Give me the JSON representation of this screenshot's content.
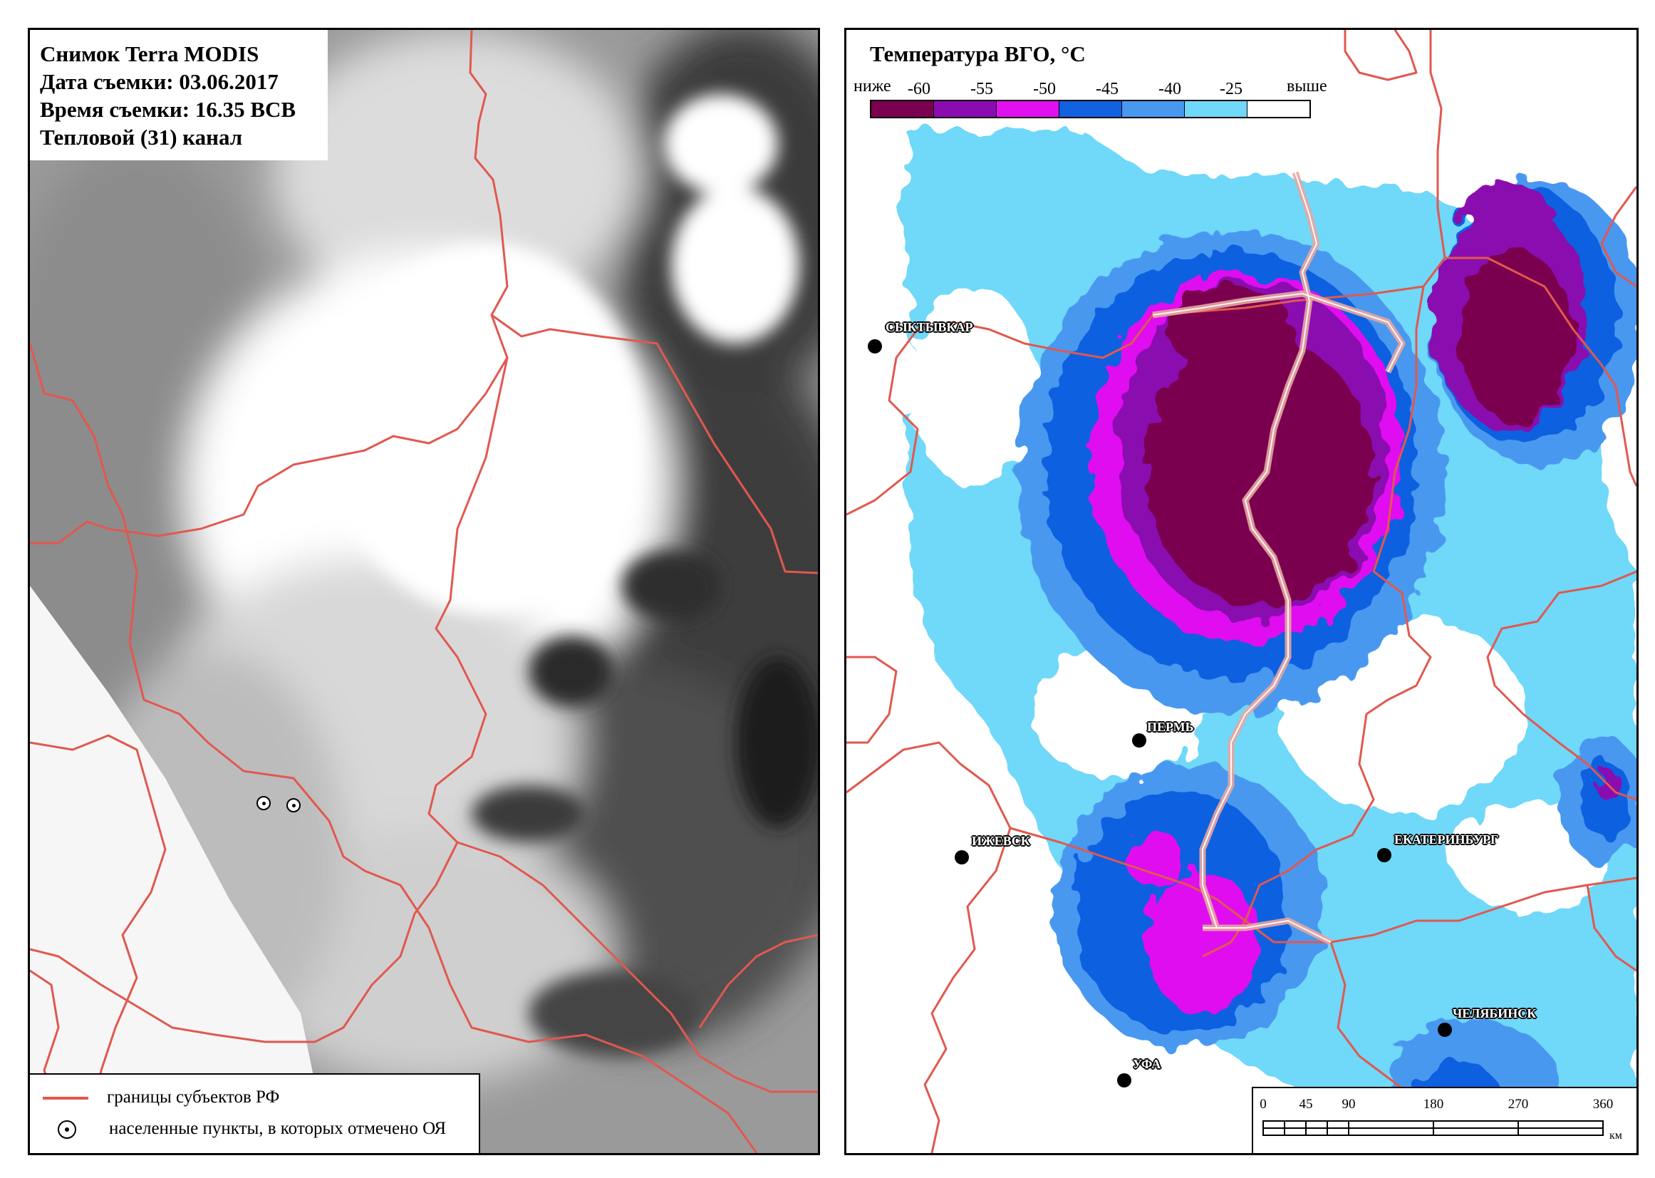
{
  "left_panel": {
    "info": {
      "line1": "Снимок Terra MODIS",
      "line2": "Дата съемки: 03.06.2017",
      "line3": "Время съемки: 16.35 ВСВ",
      "line4": "Тепловой (31) канал"
    },
    "legend": {
      "borders_label": "границы субъектов РФ",
      "settlements_label": "населенные пункты, в которых отмечено ОЯ"
    },
    "colors": {
      "border_line": "#e1584f"
    }
  },
  "right_panel": {
    "title": "Температура ВГО, °С",
    "scale": {
      "below_label": "ниже",
      "above_label": "выше",
      "ticks": [
        "-60",
        "-55",
        "-50",
        "-45",
        "-40",
        "-25"
      ],
      "colors": [
        "#7a0050",
        "#8a0cb0",
        "#e010f0",
        "#1060e0",
        "#4898f0",
        "#70d8f8",
        "#ffffff"
      ]
    },
    "cities": [
      {
        "name": "СЫКТЫВКАР"
      },
      {
        "name": "ПЕРМЬ"
      },
      {
        "name": "ИЖЕВСК"
      },
      {
        "name": "ЕКАТЕРИНБУРГ"
      },
      {
        "name": "УФА"
      },
      {
        "name": "ЧЕЛЯБИНСК"
      }
    ],
    "distance_scale": {
      "ticks": [
        "0",
        "45",
        "90",
        "180",
        "270",
        "360"
      ],
      "unit": "км"
    }
  }
}
